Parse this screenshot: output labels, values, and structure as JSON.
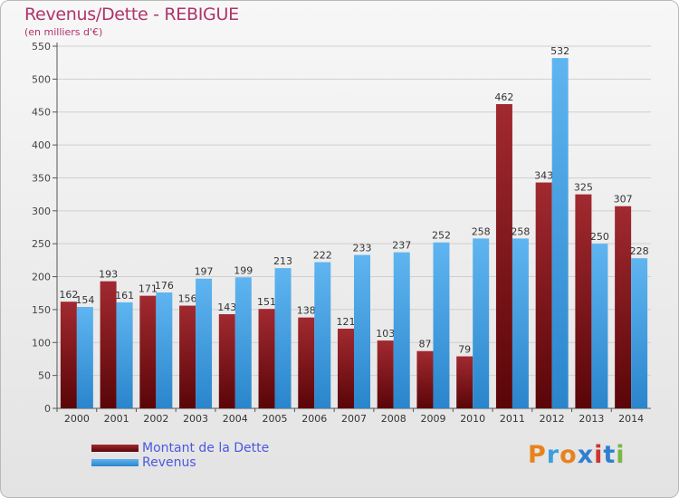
{
  "chart_data": {
    "type": "bar",
    "title": "Revenus/Dette - REBIGUE",
    "subtitle": "(en milliers d'€)",
    "categories": [
      "2000",
      "2001",
      "2002",
      "2003",
      "2004",
      "2005",
      "2006",
      "2007",
      "2008",
      "2009",
      "2010",
      "2011",
      "2012",
      "2013",
      "2014"
    ],
    "series": [
      {
        "name": "Montant de la Dette",
        "color": "#7a1218",
        "values": [
          162,
          193,
          171,
          156,
          143,
          151,
          138,
          121,
          103,
          87,
          79,
          462,
          343,
          325,
          307
        ]
      },
      {
        "name": "Revenus",
        "color": "#3d9ee0",
        "values": [
          154,
          161,
          176,
          197,
          199,
          213,
          222,
          233,
          237,
          252,
          258,
          258,
          532,
          250,
          228
        ]
      }
    ],
    "ylim": [
      0,
      550
    ],
    "yticks": [
      0,
      50,
      100,
      150,
      200,
      250,
      300,
      350,
      400,
      450,
      500,
      550
    ],
    "grid": true,
    "legend_position": "bottom-left"
  },
  "logo": {
    "text": "Proxiti",
    "colors": [
      "#e8821e",
      "#3d9ee0",
      "#e8821e",
      "#2f7fd0",
      "#cc3333",
      "#2f7fd0",
      "#7ab648"
    ]
  }
}
